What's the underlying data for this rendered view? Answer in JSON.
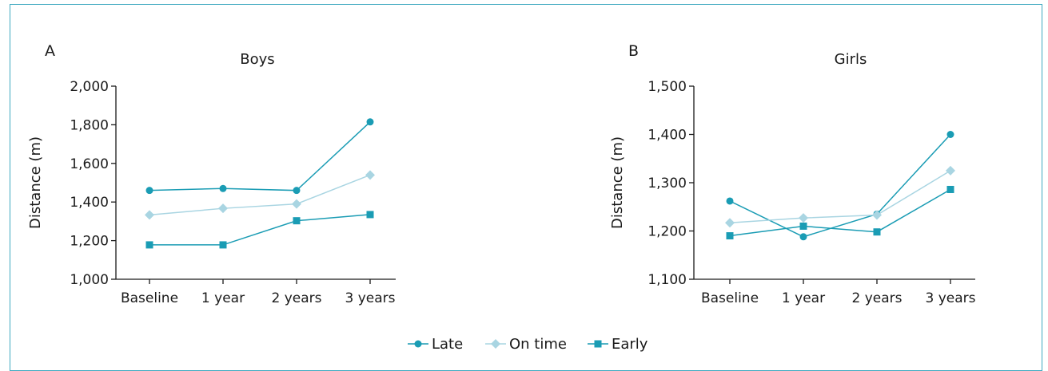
{
  "chart_data": [
    {
      "type": "line",
      "panel_label": "A",
      "title": "Boys",
      "xlabel": "",
      "ylabel": "Distance (m)",
      "categories": [
        "Baseline",
        "1 year",
        "2 years",
        "3 years"
      ],
      "ylim": [
        1000,
        2000
      ],
      "yticks": [
        1000,
        1200,
        1400,
        1600,
        1800,
        2000
      ],
      "ytick_labels": [
        "1,000",
        "1,200",
        "1,400",
        "1,600",
        "1,800",
        "2,000"
      ],
      "grid": false,
      "series": [
        {
          "name": "Late",
          "values": [
            1460,
            1470,
            1460,
            1815
          ]
        },
        {
          "name": "On time",
          "values": [
            1333,
            1367,
            1390,
            1540
          ]
        },
        {
          "name": "Early",
          "values": [
            1178,
            1178,
            1303,
            1335
          ]
        }
      ]
    },
    {
      "type": "line",
      "panel_label": "B",
      "title": "Girls",
      "xlabel": "",
      "ylabel": "Distance (m)",
      "categories": [
        "Baseline",
        "1 year",
        "2 years",
        "3 years"
      ],
      "ylim": [
        1100,
        1500
      ],
      "yticks": [
        1100,
        1200,
        1300,
        1400,
        1500
      ],
      "ytick_labels": [
        "1,100",
        "1,200",
        "1,300",
        "1,400",
        "1,500"
      ],
      "grid": false,
      "series": [
        {
          "name": "Late",
          "values": [
            1262,
            1188,
            1235,
            1400
          ]
        },
        {
          "name": "On time",
          "values": [
            1217,
            1227,
            1233,
            1325
          ]
        },
        {
          "name": "Early",
          "values": [
            1190,
            1210,
            1198,
            1286
          ]
        }
      ]
    }
  ],
  "legend": {
    "placement": "bottom-center",
    "items": [
      {
        "name": "Late",
        "marker": "circle",
        "color": "#1a9cb4"
      },
      {
        "name": "On time",
        "marker": "diamond",
        "color": "#a9d5e2"
      },
      {
        "name": "Early",
        "marker": "square",
        "color": "#1a9cb4"
      }
    ]
  },
  "colors": {
    "late": "#1a9cb4",
    "on_time": "#a9d5e2",
    "early": "#1a9cb4",
    "axis": "#1a1a1a",
    "frame": "#3fa9c0"
  }
}
